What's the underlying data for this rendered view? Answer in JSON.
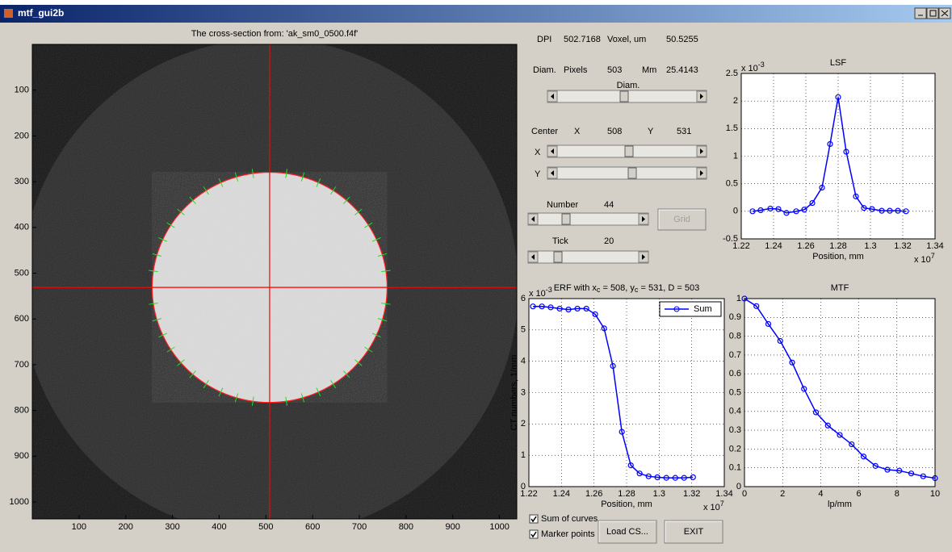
{
  "window": {
    "title": "mtf_gui2b"
  },
  "image": {
    "title": "The cross-section from: 'ak_sm0_0500.f4f'",
    "xlim": [
      0,
      1037
    ],
    "ylim": [
      0,
      1037
    ],
    "xticks": [
      100,
      200,
      300,
      400,
      500,
      600,
      700,
      800,
      900,
      1000
    ],
    "yticks": [
      100,
      200,
      300,
      400,
      500,
      600,
      700,
      800,
      900,
      1000
    ]
  },
  "info": {
    "dpi_label": "DPI",
    "dpi": 502.7168,
    "voxel_label": "Voxel, um",
    "voxel": 50.5255,
    "diam_label": "Diam.",
    "pixels_label": "Pixels",
    "pixels": 503,
    "mm_label": "Mm",
    "mm": 25.4143,
    "diam_slider_label": "Diam.",
    "center_label": "Center",
    "x_label": "X",
    "x": 508,
    "y_label": "Y",
    "y": 531,
    "x_slider_label": "X",
    "y_slider_label": "Y",
    "number_label": "Number",
    "number": 44,
    "tick_label": "Tick",
    "tick": 20,
    "grid_button": "Grid",
    "load_button": "Load CS...",
    "exit_button": "EXIT",
    "checkboxes": [
      {
        "label": "Sum of curves",
        "checked": true
      },
      {
        "label": "Marker points",
        "checked": true
      }
    ]
  },
  "plots": [
    {
      "type": "line",
      "title": [
        "LSF"
      ],
      "xlabel": "Position, mm",
      "x_exp": [
        "x 10",
        "7"
      ],
      "y_exp": [
        "x 10",
        "-3"
      ],
      "xlim": [
        1.22,
        1.34
      ],
      "ylim": [
        -0.5,
        2.5
      ],
      "xticks": [
        1.22,
        1.24,
        1.26,
        1.28,
        1.3,
        1.32,
        1.34
      ],
      "yticks": [
        -0.5,
        0,
        0.5,
        1,
        1.5,
        2,
        2.5
      ],
      "grid": true,
      "series": [
        {
          "color": "#0000ff",
          "x": [
            1.227,
            1.232,
            1.238,
            1.243,
            1.248,
            1.254,
            1.259,
            1.264,
            1.27,
            1.275,
            1.28,
            1.285,
            1.291,
            1.296,
            1.301,
            1.307,
            1.312,
            1.317,
            1.322
          ],
          "values": [
            0,
            0.02,
            0.05,
            0.04,
            -0.03,
            0,
            0.03,
            0.15,
            0.43,
            1.22,
            2.07,
            1.08,
            0.27,
            0.06,
            0.04,
            0.01,
            0.01,
            0.01,
            0
          ]
        }
      ]
    },
    {
      "type": "line",
      "title": [
        "ERF with x",
        "c",
        " = 508, y",
        "c",
        " = 531, D = 503"
      ],
      "xlabel": "Position, mm",
      "ylabel": "CT numbers, 1/mm",
      "x_exp": [
        "x 10",
        "7"
      ],
      "y_exp": [
        "x 10",
        "-3"
      ],
      "xlim": [
        1.22,
        1.34
      ],
      "ylim": [
        0,
        6
      ],
      "xticks": [
        1.22,
        1.24,
        1.26,
        1.28,
        1.3,
        1.32,
        1.34
      ],
      "yticks": [
        0,
        1,
        2,
        3,
        4,
        5,
        6
      ],
      "grid": true,
      "legend": "upper right",
      "series": [
        {
          "name": "Sum",
          "color": "#0000ff",
          "x": [
            1.2225,
            1.228,
            1.2334,
            1.2389,
            1.2443,
            1.2498,
            1.2553,
            1.2607,
            1.2662,
            1.2716,
            1.2771,
            1.2826,
            1.288,
            1.2935,
            1.2989,
            1.3044,
            1.3099,
            1.3153,
            1.3208
          ],
          "values": [
            5.75,
            5.75,
            5.72,
            5.68,
            5.65,
            5.68,
            5.68,
            5.5,
            5.05,
            3.85,
            1.75,
            0.68,
            0.42,
            0.33,
            0.3,
            0.28,
            0.28,
            0.28,
            0.3
          ]
        }
      ]
    },
    {
      "type": "line",
      "title": [
        "MTF"
      ],
      "xlabel": "lp/mm",
      "xlim": [
        0,
        10
      ],
      "ylim": [
        0,
        1
      ],
      "xticks": [
        0,
        2,
        4,
        6,
        8,
        10
      ],
      "yticks": [
        0,
        0.1,
        0.2,
        0.3,
        0.4,
        0.5,
        0.6,
        0.7,
        0.8,
        0.9,
        1
      ],
      "grid": true,
      "series": [
        {
          "color": "#0000ff",
          "x": [
            0,
            0.625,
            1.25,
            1.875,
            2.5,
            3.125,
            3.75,
            4.375,
            5,
            5.625,
            6.25,
            6.875,
            7.5,
            8.125,
            8.75,
            9.375,
            10
          ],
          "values": [
            1,
            0.96,
            0.865,
            0.775,
            0.66,
            0.52,
            0.395,
            0.325,
            0.275,
            0.225,
            0.16,
            0.11,
            0.09,
            0.085,
            0.07,
            0.055,
            0.045
          ]
        }
      ]
    }
  ]
}
